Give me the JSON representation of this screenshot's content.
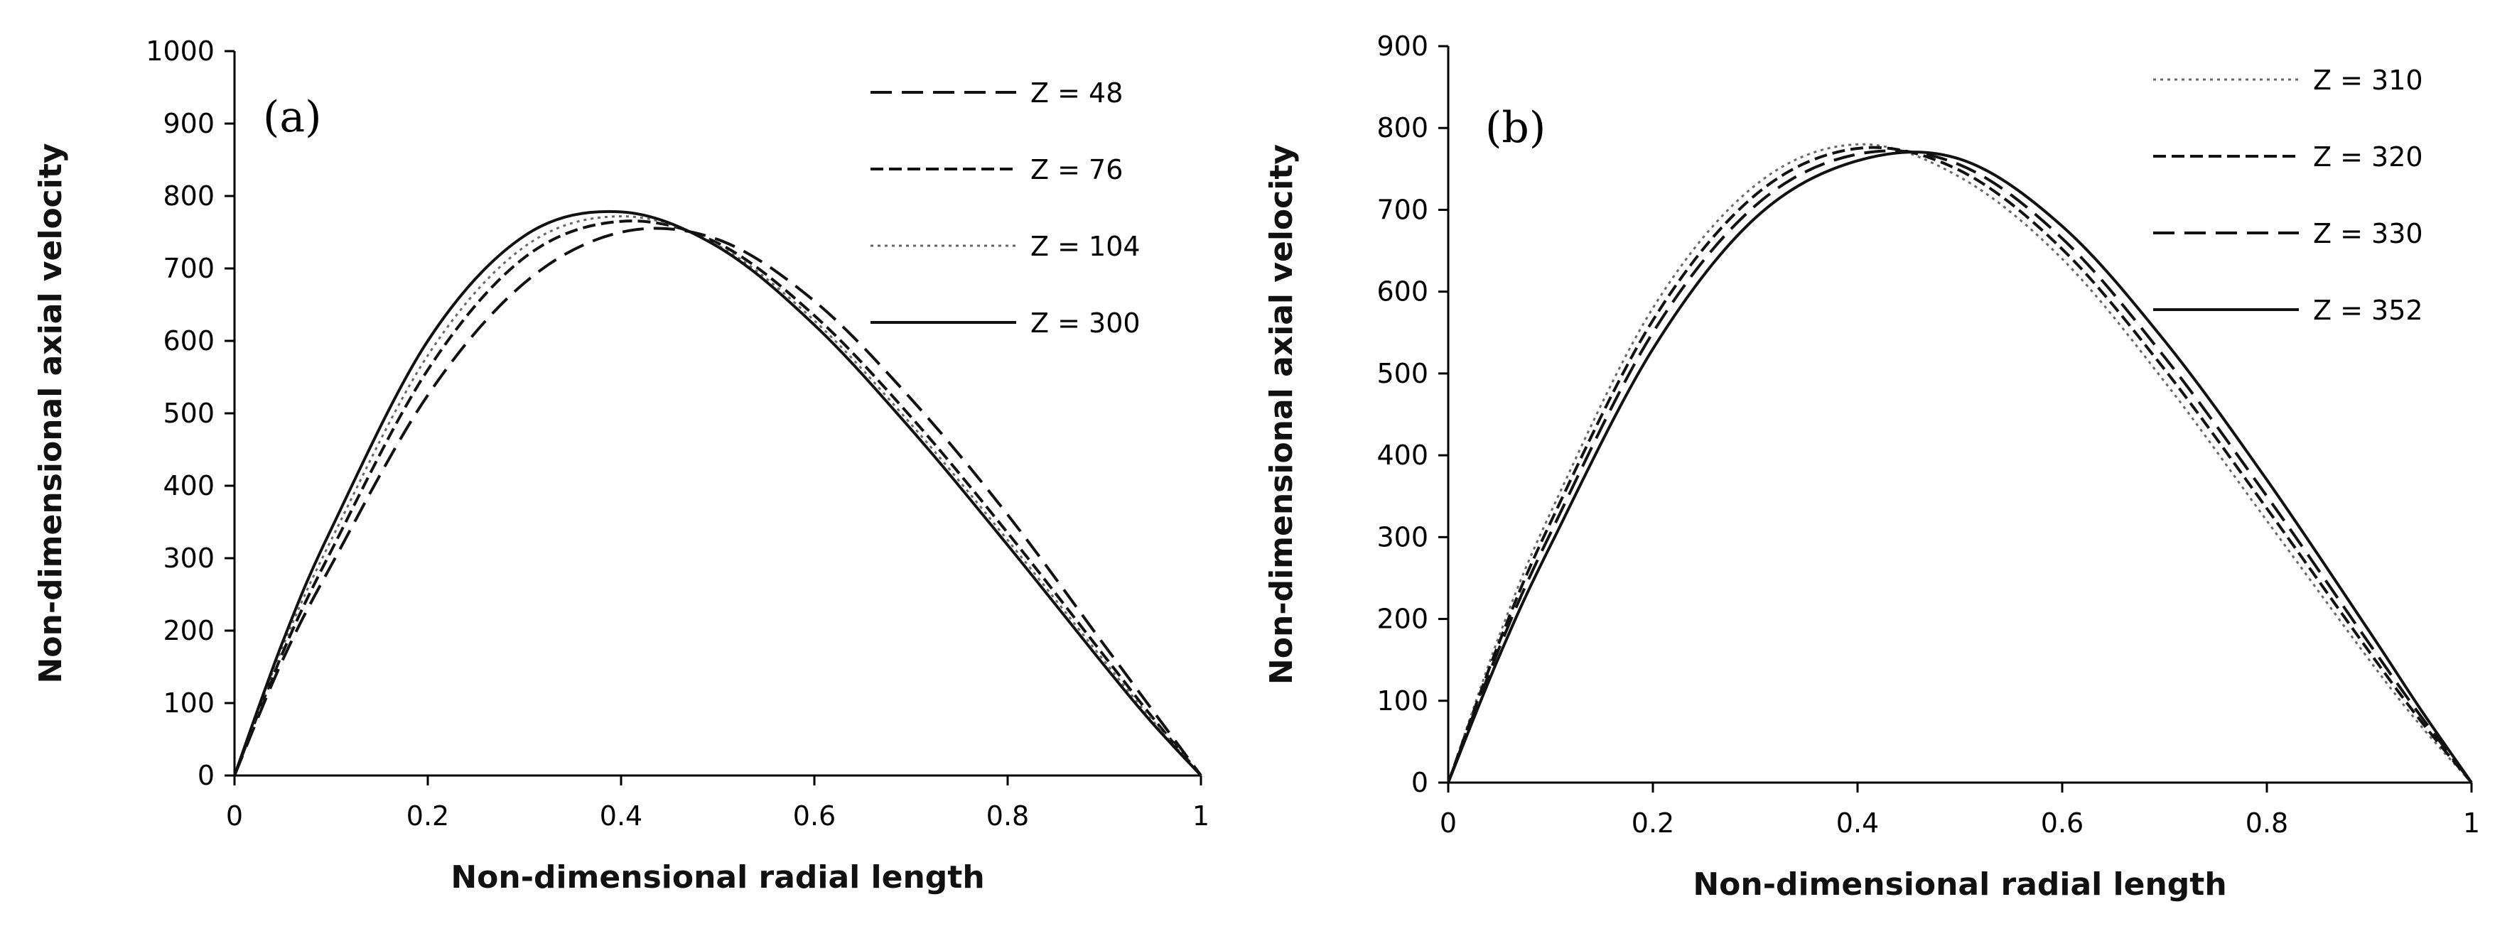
{
  "chart_data": [
    {
      "type": "line",
      "panel_label": "(a)",
      "xlabel": "Non-dimensional radial length",
      "ylabel": "Non-dimensional axial velocity",
      "xlim": [
        0,
        1
      ],
      "ylim": [
        0,
        1000
      ],
      "x_ticks": [
        0,
        0.2,
        0.4,
        0.6,
        0.8,
        1
      ],
      "x_tick_labels": [
        "0",
        "0.2",
        "0.4",
        "0.6",
        "0.8",
        "1"
      ],
      "y_ticks": [
        0,
        100,
        200,
        300,
        400,
        500,
        600,
        700,
        800,
        900,
        1000
      ],
      "y_tick_labels": [
        "0",
        "100",
        "200",
        "300",
        "400",
        "500",
        "600",
        "700",
        "800",
        "900",
        "1000"
      ],
      "legend_position": "top-right",
      "series": [
        {
          "name": "Z = 48",
          "style": "longdash",
          "x": [
            0,
            0.05,
            0.1,
            0.2,
            0.3,
            0.4,
            0.5,
            0.6,
            0.7,
            0.8,
            0.9,
            0.95,
            1
          ],
          "y": [
            0,
            160,
            290,
            525,
            680,
            750,
            740,
            655,
            520,
            360,
            180,
            90,
            0
          ]
        },
        {
          "name": "Z = 76",
          "style": "dash",
          "x": [
            0,
            0.05,
            0.1,
            0.2,
            0.3,
            0.4,
            0.5,
            0.6,
            0.7,
            0.8,
            0.9,
            0.95,
            1
          ],
          "y": [
            0,
            170,
            310,
            560,
            715,
            765,
            735,
            635,
            495,
            335,
            165,
            80,
            0
          ]
        },
        {
          "name": "Z = 104",
          "style": "dot",
          "x": [
            0,
            0.05,
            0.1,
            0.2,
            0.3,
            0.4,
            0.5,
            0.6,
            0.7,
            0.8,
            0.9,
            0.95,
            1
          ],
          "y": [
            0,
            178,
            325,
            580,
            730,
            772,
            732,
            628,
            485,
            325,
            158,
            76,
            0
          ]
        },
        {
          "name": "Z = 300",
          "style": "solid",
          "x": [
            0,
            0.05,
            0.1,
            0.2,
            0.3,
            0.4,
            0.5,
            0.6,
            0.7,
            0.8,
            0.9,
            0.95,
            1
          ],
          "y": [
            0,
            185,
            340,
            600,
            745,
            778,
            730,
            622,
            478,
            318,
            152,
            72,
            0
          ]
        }
      ]
    },
    {
      "type": "line",
      "panel_label": "(b)",
      "xlabel": "Non-dimensional radial length",
      "ylabel": "Non-dimensional axial velocity",
      "xlim": [
        0,
        1
      ],
      "ylim": [
        0,
        900
      ],
      "x_ticks": [
        0,
        0.2,
        0.4,
        0.6,
        0.8,
        1
      ],
      "x_tick_labels": [
        "0",
        "0.2",
        "0.4",
        "0.6",
        "0.8",
        "1"
      ],
      "y_ticks": [
        0,
        100,
        200,
        300,
        400,
        500,
        600,
        700,
        800,
        900
      ],
      "y_tick_labels": [
        "0",
        "100",
        "200",
        "300",
        "400",
        "500",
        "600",
        "700",
        "800",
        "900"
      ],
      "legend_position": "top-right",
      "series": [
        {
          "name": "Z = 310",
          "style": "dot",
          "x": [
            0,
            0.05,
            0.1,
            0.2,
            0.3,
            0.4,
            0.5,
            0.6,
            0.7,
            0.8,
            0.9,
            0.95,
            1
          ],
          "y": [
            0,
            180,
            330,
            580,
            730,
            780,
            740,
            640,
            490,
            320,
            150,
            70,
            0
          ]
        },
        {
          "name": "Z = 320",
          "style": "dash",
          "x": [
            0,
            0.05,
            0.1,
            0.2,
            0.3,
            0.4,
            0.5,
            0.6,
            0.7,
            0.8,
            0.9,
            0.95,
            1
          ],
          "y": [
            0,
            172,
            318,
            565,
            718,
            775,
            748,
            652,
            505,
            335,
            160,
            76,
            0
          ]
        },
        {
          "name": "Z = 330",
          "style": "longdash",
          "x": [
            0,
            0.05,
            0.1,
            0.2,
            0.3,
            0.4,
            0.5,
            0.6,
            0.7,
            0.8,
            0.9,
            0.95,
            1
          ],
          "y": [
            0,
            165,
            305,
            550,
            705,
            768,
            755,
            665,
            520,
            350,
            170,
            82,
            0
          ]
        },
        {
          "name": "Z = 352",
          "style": "solid",
          "x": [
            0,
            0.05,
            0.1,
            0.2,
            0.3,
            0.4,
            0.5,
            0.6,
            0.7,
            0.8,
            0.9,
            0.95,
            1
          ],
          "y": [
            0,
            155,
            290,
            530,
            690,
            760,
            762,
            680,
            540,
            370,
            185,
            90,
            0
          ]
        }
      ]
    }
  ]
}
